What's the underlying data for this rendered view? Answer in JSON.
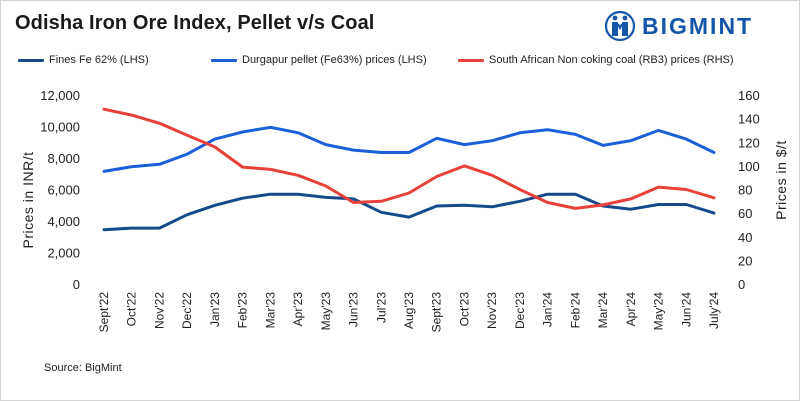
{
  "title": "Odisha Iron Ore Index, Pellet v/s Coal",
  "brand": {
    "name": "BIGMINT",
    "icon": "bigmint-logo-icon",
    "color": "#1656a9"
  },
  "source": "Source: BigMint",
  "colors": {
    "fines": "#164a8a",
    "pellet": "#1c5fd8",
    "coal": "#e8403a",
    "axis_text": "#222222"
  },
  "chart_data": {
    "type": "line",
    "title": "Odisha Iron Ore Index, Pellet v/s Coal",
    "categories": [
      "Sept'22",
      "Oct'22",
      "Nov'22",
      "Dec'22",
      "Jan'23",
      "Feb'23",
      "Mar'23",
      "Apr'23",
      "May'23",
      "Jun'23",
      "Jul'23",
      "Aug'23",
      "Sept'23",
      "Oct'23",
      "Nov'23",
      "Dec'23",
      "Jan'24",
      "Feb'24",
      "Mar'24",
      "Apr'24",
      "May'24",
      "Jun'24",
      "July'24"
    ],
    "ylabel_left": "Prices in INR/t",
    "ylabel_right": "Prices in $/t",
    "ylim_left": [
      0,
      12000
    ],
    "ylim_right": [
      0,
      160
    ],
    "left_ticks": [
      "0",
      "2,000",
      "4,000",
      "6,000",
      "8,000",
      "10,000",
      "12,000"
    ],
    "left_tick_values": [
      0,
      2000,
      4000,
      6000,
      8000,
      10000,
      12000
    ],
    "right_ticks": [
      "0",
      "20",
      "40",
      "60",
      "80",
      "100",
      "120",
      "140",
      "160"
    ],
    "right_tick_values": [
      0,
      20,
      40,
      60,
      80,
      100,
      120,
      140,
      160
    ],
    "series": [
      {
        "name": "Fines Fe 62% (LHS)",
        "axis": "left",
        "color": "#164a8a",
        "values": [
          3450,
          3550,
          3550,
          4400,
          5000,
          5450,
          5700,
          5700,
          5500,
          5400,
          4550,
          4250,
          4950,
          5000,
          4900,
          5250,
          5700,
          5700,
          4950,
          4750,
          5050,
          5050,
          4500
        ]
      },
      {
        "name": "Durgapur pellet (Fe63%) prices (LHS)",
        "axis": "left",
        "color": "#1c5fd8",
        "values": [
          7150,
          7450,
          7600,
          8250,
          9200,
          9650,
          9950,
          9600,
          8850,
          8500,
          8350,
          8350,
          9250,
          8850,
          9100,
          9600,
          9800,
          9500,
          8800,
          9100,
          9750,
          9200,
          8350
        ]
      },
      {
        "name": "South African Non coking coal (RB3) prices (RHS)",
        "axis": "right",
        "color": "#e8403a",
        "values": [
          148,
          143,
          136,
          126,
          116,
          99,
          97,
          92,
          83,
          69,
          70,
          77,
          91,
          100,
          92,
          80,
          69,
          64,
          67,
          72,
          82,
          80,
          73
        ]
      }
    ]
  }
}
